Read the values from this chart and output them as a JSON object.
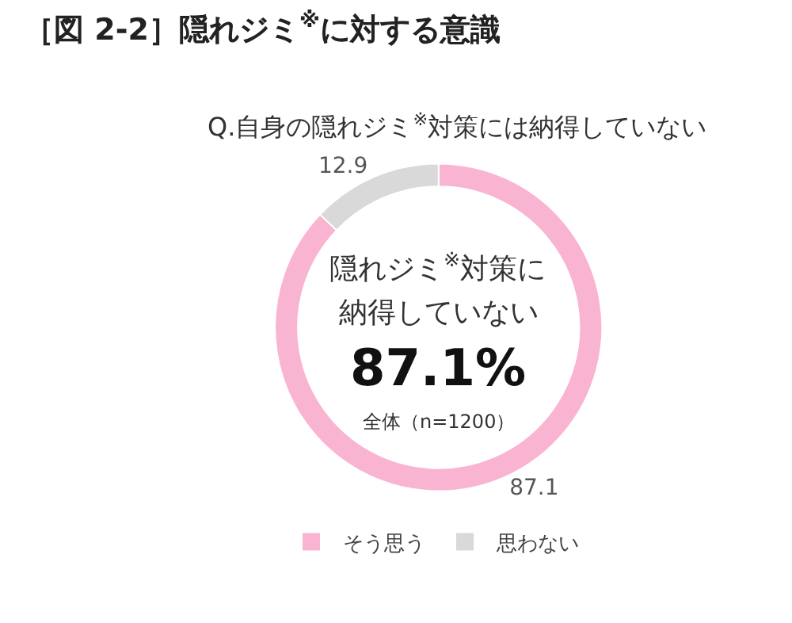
{
  "chart_data": {
    "type": "donut",
    "title": "［図 2-2］隠れジミ$^{※}$に対する意識",
    "subtitle": "Q.自身の隠れジミ$^{※}$対策には納得していない",
    "categories": [
      "そう思う",
      "思わない"
    ],
    "values": [
      87.1,
      12.9
    ],
    "colors": [
      "#f9b4d2",
      "#d9d9d9"
    ],
    "data_labels": true,
    "legend": "bottom",
    "annotations": [
      "隠れジミ$^{※}$対策に",
      "納得していない",
      "87.1%",
      "全体（n=1200）"
    ]
  }
}
